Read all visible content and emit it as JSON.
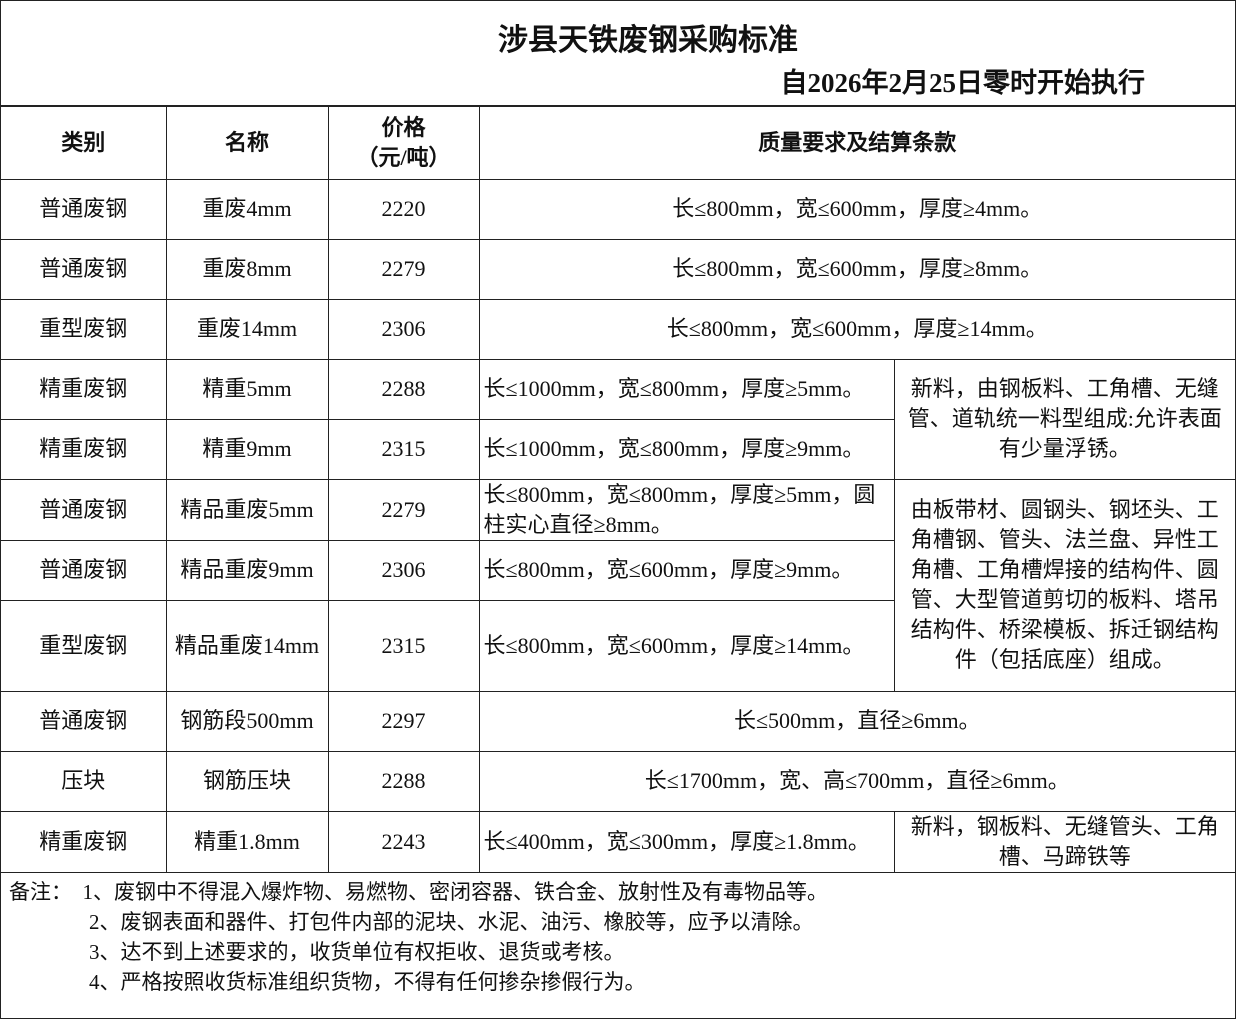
{
  "header": {
    "title": "涉县天铁废钢采购标准",
    "subtitle": "自2026年2月25日零时开始执行"
  },
  "columns": [
    "类别",
    "名称",
    "价格\n（元/吨）",
    "质量要求及结算条款"
  ],
  "columns_price": [
    "价格",
    "（元/吨）"
  ],
  "rows": [
    {
      "category": "普通废钢",
      "name": "重废4mm",
      "price": "2220",
      "spec": "长≤800mm，宽≤600mm，厚度≥4mm。"
    },
    {
      "category": "普通废钢",
      "name": "重废8mm",
      "price": "2279",
      "spec": "长≤800mm，宽≤600mm，厚度≥8mm。"
    },
    {
      "category": "重型废钢",
      "name": "重废14mm",
      "price": "2306",
      "spec": "长≤800mm，宽≤600mm，厚度≥14mm。"
    },
    {
      "category": "精重废钢",
      "name": "精重5mm",
      "price": "2288",
      "spec": "长≤1000mm，宽≤800mm，厚度≥5mm。"
    },
    {
      "category": "精重废钢",
      "name": "精重9mm",
      "price": "2315",
      "spec": "长≤1000mm，宽≤800mm，厚度≥9mm。"
    },
    {
      "category": "普通废钢",
      "name": "精品重废5mm",
      "price": "2279",
      "spec": "长≤800mm，宽≤800mm，厚度≥5mm，圆柱实心直径≥8mm。"
    },
    {
      "category": "普通废钢",
      "name": "精品重废9mm",
      "price": "2306",
      "spec": "长≤800mm，宽≤600mm，厚度≥9mm。"
    },
    {
      "category": "重型废钢",
      "name": "精品重废14mm",
      "price": "2315",
      "spec": "长≤800mm，宽≤600mm，厚度≥14mm。"
    },
    {
      "category": "普通废钢",
      "name": "钢筋段500mm",
      "price": "2297",
      "spec": "长≤500mm，直径≥6mm。"
    },
    {
      "category": "压块",
      "name": "钢筋压块",
      "price": "2288",
      "spec": "长≤1700mm，宽、高≤700mm，直径≥6mm。"
    },
    {
      "category": "精重废钢",
      "name": "精重1.8mm",
      "price": "2243",
      "spec": "长≤400mm，宽≤300mm，厚度≥1.8mm。"
    }
  ],
  "side_notes": [
    "新料，由钢板料、工角槽、无缝管、道轨统一料型组成:允许表面有少量浮锈。",
    "由板带材、圆钢头、钢坯头、工角槽钢、管头、法兰盘、异性工角槽、工角槽焊接的结构件、圆管、大型管道剪切的板料、塔吊结构件、桥梁模板、拆迁钢结构件（包括底座）组成。",
    "新料，钢板料、无缝管头、工角槽、马蹄铁等"
  ],
  "remarks": {
    "label": "备注：",
    "items": [
      "1、废钢中不得混入爆炸物、易燃物、密闭容器、铁合金、放射性及有毒物品等。",
      "2、废钢表面和器件、打包件内部的泥块、水泥、油污、橡胶等，应予以清除。",
      "3、达不到上述要求的，收货单位有权拒收、退货或考核。",
      "4、严格按照收货标准组织货物，不得有任何掺杂掺假行为。"
    ]
  }
}
